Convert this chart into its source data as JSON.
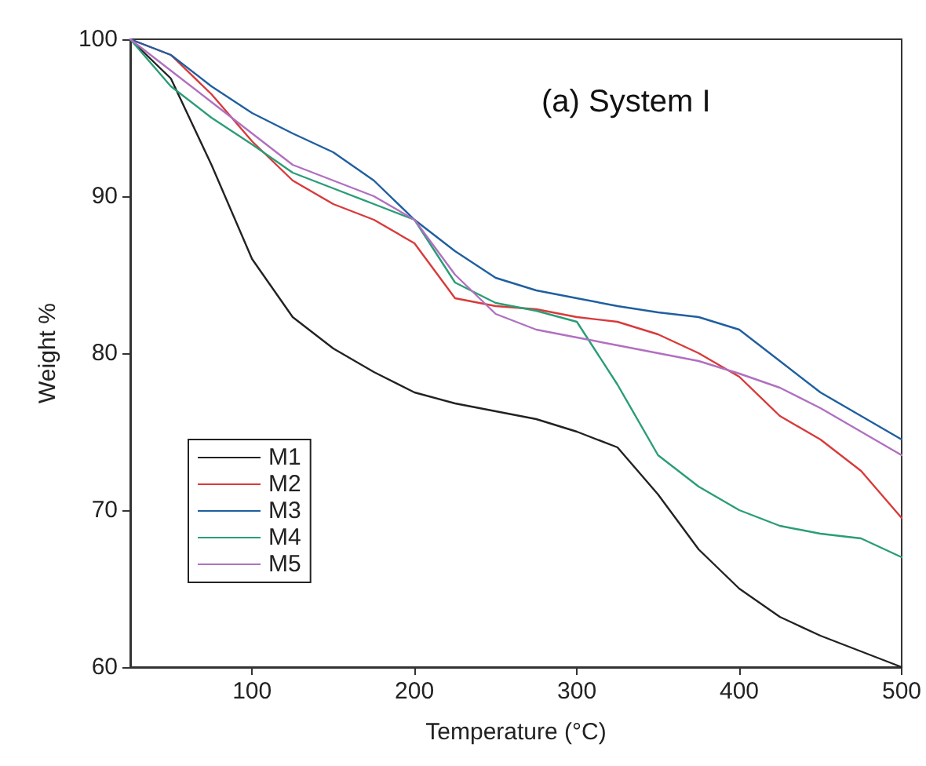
{
  "chart_data": {
    "type": "line",
    "xlabel": "Temperature (°C)",
    "ylabel": "Weight %",
    "annotations": [
      "(a) System I"
    ],
    "xlim": [
      25,
      500
    ],
    "xticks": [
      100,
      200,
      300,
      400,
      500
    ],
    "ylim": [
      60,
      100
    ],
    "yticks": [
      60,
      70,
      80,
      90,
      100
    ],
    "grid": false,
    "legend": "bottom left",
    "marker": "none",
    "line_style": "solid",
    "x": [
      25,
      50,
      75,
      100,
      125,
      150,
      175,
      200,
      225,
      250,
      275,
      300,
      325,
      350,
      375,
      400,
      425,
      450,
      475,
      500
    ],
    "series": [
      {
        "name": "M1",
        "color": "#222222",
        "values": [
          100,
          97.5,
          92,
          86,
          82.3,
          80.3,
          78.8,
          77.5,
          76.8,
          76.3,
          75.8,
          75,
          74,
          71,
          67.5,
          65,
          63.2,
          62,
          61,
          60
        ]
      },
      {
        "name": "M2",
        "color": "#d93a3a",
        "values": [
          100,
          99,
          96.5,
          93.5,
          91,
          89.5,
          88.5,
          87,
          83.5,
          83,
          82.8,
          82.3,
          82,
          81.2,
          80,
          78.5,
          76,
          74.5,
          72.5,
          69.5
        ]
      },
      {
        "name": "M3",
        "color": "#1f5fa0",
        "values": [
          100,
          99,
          97,
          95.3,
          94,
          92.8,
          91,
          88.5,
          86.5,
          84.8,
          84,
          83.5,
          83,
          82.6,
          82.3,
          81.5,
          79.5,
          77.5,
          76,
          74.5
        ]
      },
      {
        "name": "M4",
        "color": "#2a9d77",
        "values": [
          100,
          97,
          95,
          93.3,
          91.5,
          90.5,
          89.5,
          88.5,
          84.5,
          83.2,
          82.7,
          82,
          78,
          73.5,
          71.5,
          70,
          69,
          68.5,
          68.2,
          67
        ]
      },
      {
        "name": "M5",
        "color": "#b070c0",
        "values": [
          100,
          98,
          96,
          94,
          92,
          91,
          90,
          88.5,
          85,
          82.5,
          81.5,
          81,
          80.5,
          80,
          79.5,
          78.7,
          77.8,
          76.5,
          75,
          73.5
        ]
      }
    ]
  }
}
